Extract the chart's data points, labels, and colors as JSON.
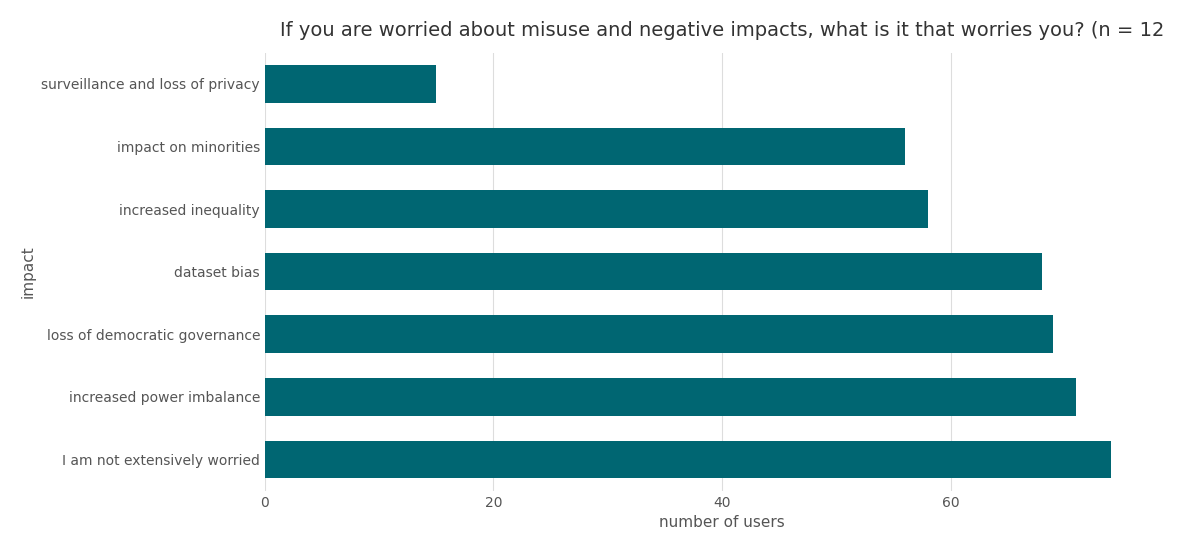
{
  "categories": [
    "surveillance and loss of privacy",
    "impact on minorities",
    "increased inequality",
    "dataset bias",
    "loss of democratic governance",
    "increased power imbalance",
    "I am not extensively worried"
  ],
  "values": [
    74,
    71,
    69,
    68,
    58,
    56,
    15
  ],
  "bar_color": "#006672",
  "title": "If you are worried about misuse and negative impacts, what is it that worries you? (n = 12",
  "xlabel": "number of users",
  "ylabel": "impact",
  "xlim": [
    0,
    80
  ],
  "xticks": [
    0,
    20,
    40,
    60
  ],
  "background_color": "#ffffff",
  "grid_color": "#dddddd",
  "title_fontsize": 14,
  "axis_label_fontsize": 11,
  "tick_fontsize": 10,
  "bar_height": 0.6
}
